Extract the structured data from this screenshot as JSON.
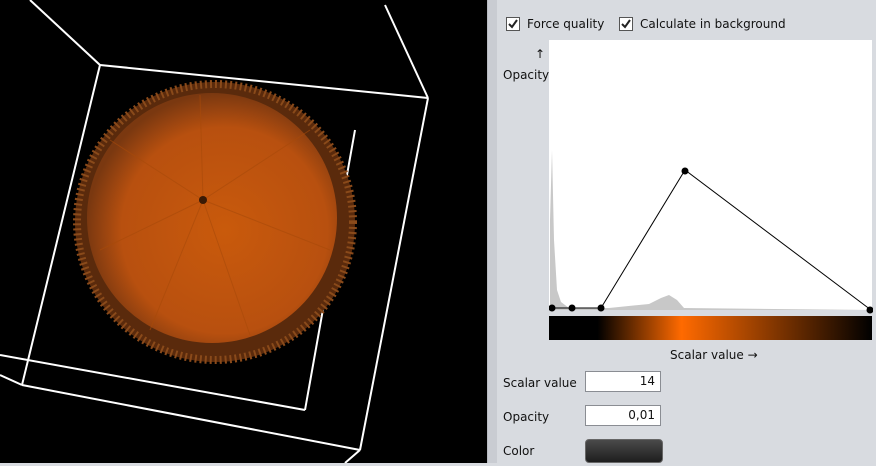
{
  "checkboxes": [
    {
      "label": "Force quality",
      "checked": true
    },
    {
      "label": "Calculate in background",
      "checked": true
    }
  ],
  "editor": {
    "y_arrow": "↑",
    "y_label": "Opacity",
    "x_label": "Scalar value →"
  },
  "fields": [
    {
      "label": "Scalar value",
      "value": "14"
    },
    {
      "label": "Opacity",
      "value": "0,01"
    }
  ],
  "color": {
    "label": "Color"
  }
}
